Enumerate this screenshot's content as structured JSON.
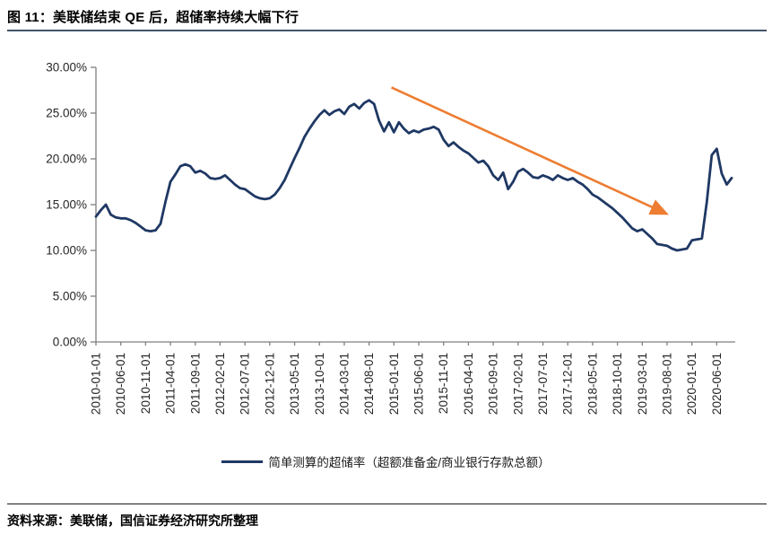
{
  "header": {
    "title": "图 11：美联储结束 QE 后，超储率持续大幅下行"
  },
  "footer": {
    "source": "资料来源：美联储，国信证券经济研究所整理"
  },
  "chart_data": {
    "type": "line",
    "title": "图 11：美联储结束 QE 后，超储率持续大幅下行",
    "xlabel": "",
    "ylabel": "",
    "ylim": [
      0,
      30
    ],
    "grid": false,
    "legend_position": "bottom",
    "axis_color": "#808080",
    "label_color": "#262626",
    "y_tick_values": [
      30,
      25,
      20,
      15,
      10,
      5,
      0
    ],
    "y_tick_labels": [
      "30.00%",
      "25.00%",
      "20.00%",
      "15.00%",
      "10.00%",
      "5.00%",
      "0.00%"
    ],
    "x_tick_interval": 5,
    "x_tick_labels": [
      "2010-01-01",
      "2010-06-01",
      "2010-11-01",
      "2011-04-01",
      "2011-09-01",
      "2012-02-01",
      "2012-07-01",
      "2012-12-01",
      "2013-05-01",
      "2013-10-01",
      "2014-03-01",
      "2014-08-01",
      "2015-01-01",
      "2015-06-01",
      "2015-11-01",
      "2016-04-01",
      "2016-09-01",
      "2017-02-01",
      "2017-07-01",
      "2017-12-01",
      "2018-05-01",
      "2018-10-01",
      "2019-03-01",
      "2019-08-01",
      "2020-01-01",
      "2020-06-01"
    ],
    "x_start_month": "2010-01",
    "x_frequency": "monthly",
    "series": [
      {
        "name": "简单测算的超储率（超额准备金/商业银行存款总额）",
        "color": "#1F3864",
        "unit": "%",
        "values": [
          13.7,
          14.4,
          15.0,
          13.9,
          13.6,
          13.5,
          13.5,
          13.3,
          13.0,
          12.6,
          12.2,
          12.1,
          12.2,
          12.9,
          15.3,
          17.5,
          18.3,
          19.2,
          19.4,
          19.2,
          18.5,
          18.7,
          18.4,
          17.9,
          17.8,
          17.9,
          18.2,
          17.7,
          17.2,
          16.8,
          16.7,
          16.3,
          15.9,
          15.7,
          15.6,
          15.7,
          16.1,
          16.8,
          17.7,
          18.9,
          20.1,
          21.2,
          22.4,
          23.3,
          24.1,
          24.8,
          25.3,
          24.8,
          25.2,
          25.4,
          24.9,
          25.7,
          26.0,
          25.5,
          26.1,
          26.4,
          26.0,
          24.2,
          23.0,
          24.0,
          22.9,
          24.0,
          23.3,
          22.8,
          23.1,
          22.9,
          23.2,
          23.3,
          23.5,
          23.2,
          22.1,
          21.4,
          21.8,
          21.3,
          20.9,
          20.6,
          20.1,
          19.6,
          19.8,
          19.2,
          18.2,
          17.7,
          18.5,
          16.7,
          17.5,
          18.6,
          18.9,
          18.5,
          18.0,
          17.9,
          18.2,
          18.0,
          17.7,
          18.2,
          17.9,
          17.7,
          17.9,
          17.5,
          17.2,
          16.7,
          16.1,
          15.8,
          15.4,
          15.0,
          14.6,
          14.1,
          13.6,
          13.0,
          12.4,
          12.1,
          12.3,
          11.8,
          11.3,
          10.7,
          10.6,
          10.5,
          10.2,
          10.0,
          10.1,
          10.2,
          11.1,
          11.2,
          11.3,
          15.3,
          20.4,
          21.1,
          18.4,
          17.2,
          17.9
        ]
      }
    ],
    "annotation_arrow": {
      "color": "#ED7D31",
      "from": {
        "x_index": 59.5,
        "value": 27.8
      },
      "to": {
        "x_index": 114.5,
        "value": 14.1
      }
    }
  }
}
